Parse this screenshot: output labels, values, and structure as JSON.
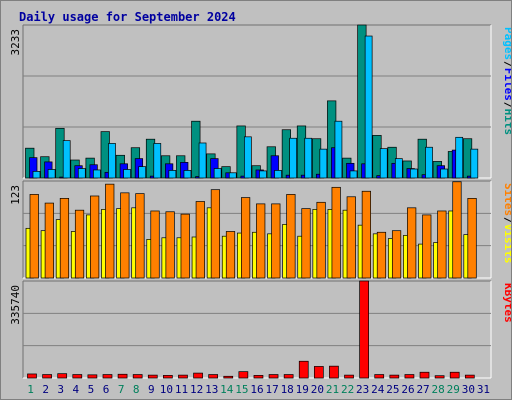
{
  "title": "Daily usage for September 2024",
  "colors": {
    "pages": "#00c0ff",
    "files": "#0000ff",
    "hits": "#009080",
    "sites": "#ff8000",
    "visits": "#ffff00",
    "kbytes": "#ff0000",
    "weekend": "#00805c",
    "weekday": "#000080",
    "title": "#0000a0"
  },
  "chart_data": [
    {
      "type": "bar",
      "title": "Daily usage for September 2024",
      "panel": "pages-files-hits",
      "ymax_label": "3233",
      "legend": [
        "Pages",
        "Files",
        "Hits"
      ],
      "ylim": [
        0,
        3233
      ],
      "series": [
        {
          "name": "Hits",
          "values": [
            630,
            450,
            1050,
            380,
            420,
            980,
            480,
            640,
            820,
            470,
            470,
            1200,
            510,
            240,
            1100,
            260,
            660,
            1020,
            1100,
            830,
            1630,
            420,
            3233,
            900,
            650,
            360,
            820,
            350,
            560,
            830,
            0
          ]
        },
        {
          "name": "Files",
          "values": [
            430,
            340,
            20,
            260,
            280,
            120,
            300,
            410,
            40,
            300,
            330,
            30,
            410,
            110,
            40,
            170,
            470,
            60,
            60,
            80,
            640,
            310,
            300,
            50,
            310,
            200,
            70,
            260,
            590,
            40,
            0
          ]
        },
        {
          "name": "Pages",
          "values": [
            140,
            180,
            790,
            200,
            170,
            730,
            180,
            240,
            730,
            160,
            160,
            740,
            200,
            110,
            870,
            150,
            160,
            840,
            840,
            610,
            1200,
            150,
            3000,
            620,
            410,
            190,
            650,
            190,
            860,
            610,
            0
          ]
        }
      ],
      "categories": [
        "1",
        "2",
        "3",
        "4",
        "5",
        "6",
        "7",
        "8",
        "9",
        "10",
        "11",
        "12",
        "13",
        "14",
        "15",
        "16",
        "17",
        "18",
        "19",
        "20",
        "21",
        "22",
        "23",
        "24",
        "25",
        "26",
        "27",
        "28",
        "29",
        "30",
        "31"
      ],
      "weekend_days": [
        "1",
        "7",
        "8",
        "14",
        "15",
        "21",
        "22",
        "28",
        "29"
      ]
    },
    {
      "type": "bar",
      "panel": "sites-visits",
      "ymax_label": "123",
      "legend": [
        "Sites",
        "Visits"
      ],
      "ylim": [
        0,
        123
      ],
      "series": [
        {
          "name": "Visits",
          "values": [
            63,
            60,
            74,
            59,
            80,
            87,
            88,
            89,
            49,
            51,
            51,
            52,
            89,
            53,
            57,
            58,
            56,
            68,
            53,
            87,
            87,
            86,
            67,
            56,
            50,
            54,
            43,
            45,
            85,
            55,
            0
          ]
        },
        {
          "name": "Sites",
          "values": [
            106,
            95,
            101,
            86,
            104,
            119,
            108,
            107,
            85,
            84,
            81,
            97,
            112,
            59,
            102,
            94,
            94,
            106,
            88,
            96,
            115,
            103,
            110,
            58,
            60,
            89,
            80,
            85,
            122,
            101,
            0
          ]
        }
      ]
    },
    {
      "type": "bar",
      "panel": "kbytes",
      "ymax_label": "335740",
      "legend": [
        "KBytes"
      ],
      "ylim": [
        0,
        335740
      ],
      "series": [
        {
          "name": "KBytes",
          "values": [
            14000,
            12000,
            15000,
            12000,
            11000,
            12000,
            13000,
            12000,
            10000,
            9000,
            10000,
            17000,
            12000,
            6000,
            22000,
            9000,
            12000,
            12000,
            58000,
            40000,
            41000,
            10000,
            335740,
            12000,
            10000,
            12000,
            20000,
            8000,
            20000,
            10000,
            0
          ]
        }
      ]
    }
  ]
}
